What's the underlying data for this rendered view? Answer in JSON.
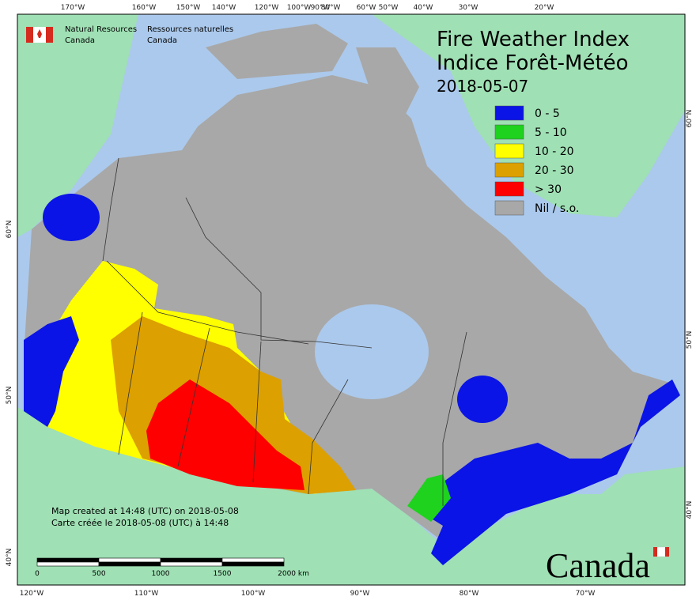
{
  "header": {
    "agency_en": "Natural Resources",
    "agency_en_2": "Canada",
    "agency_fr": "Ressources naturelles",
    "agency_fr_2": "Canada",
    "title_en": "Fire Weather Index",
    "title_fr": "Indice Forêt-Météo",
    "date": "2018-05-07"
  },
  "legend": [
    {
      "label": "0 - 5",
      "color": "#0a14e6"
    },
    {
      "label": "5 - 10",
      "color": "#1ed21e"
    },
    {
      "label": "10 - 20",
      "color": "#ffff00"
    },
    {
      "label": "20 - 30",
      "color": "#dca000"
    },
    {
      "label": "> 30",
      "color": "#ff0000"
    },
    {
      "label": "Nil / s.o.",
      "color": "#a8a8a8"
    }
  ],
  "graticule": {
    "top": [
      "170°W",
      "160°W",
      "150°W",
      "140°W",
      "120°W",
      "100°W",
      "90°W",
      "80°W",
      "60°W",
      "50°W",
      "40°W",
      "30°W",
      "20°W"
    ],
    "bottom": [
      "120°W",
      "110°W",
      "100°W",
      "90°W",
      "80°W",
      "70°W"
    ],
    "left": [
      "60°N",
      "50°N",
      "40°N"
    ],
    "right": [
      "60°N",
      "50°N",
      "40°N"
    ]
  },
  "notes": [
    "Map created at 14:48 (UTC) on 2018-05-08",
    "Carte créée le 2018-05-08 (UTC) à 14:48"
  ],
  "scale_bar": [
    "0",
    "500",
    "1000",
    "1500",
    "2000 km"
  ],
  "wordmark": "Canada"
}
